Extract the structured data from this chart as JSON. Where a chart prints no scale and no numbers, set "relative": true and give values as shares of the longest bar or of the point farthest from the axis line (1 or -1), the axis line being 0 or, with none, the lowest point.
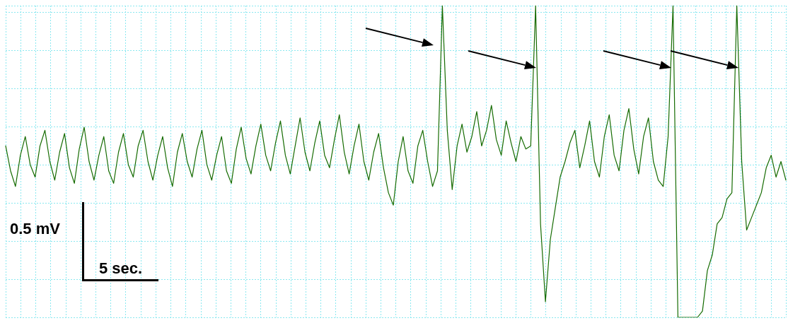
{
  "chart_data": {
    "type": "line",
    "relative": true,
    "grid": true,
    "marker": "none",
    "line_style": "solid",
    "annotations": [
      "0.5 mV",
      "5 sec."
    ],
    "categories": [
      null,
      null,
      null,
      null,
      null,
      null,
      null,
      null,
      null,
      null,
      null,
      null,
      null,
      null,
      null,
      null,
      null,
      null,
      null,
      null,
      null,
      null,
      null,
      null,
      null,
      null,
      null,
      null,
      null,
      null,
      null,
      null,
      null,
      null,
      null,
      null,
      null,
      null,
      null,
      null,
      null,
      null,
      null,
      null,
      null,
      null,
      null,
      null,
      null,
      null,
      null,
      null,
      null,
      null,
      null,
      null,
      null,
      null,
      null,
      null,
      null,
      null,
      null,
      null,
      null,
      null,
      null,
      null,
      null,
      null,
      null,
      null,
      null,
      null,
      null,
      null,
      null,
      null,
      null,
      null,
      null,
      null,
      null,
      null,
      null,
      null,
      null,
      null,
      null,
      null,
      null,
      null,
      null,
      null,
      null,
      null,
      null,
      null,
      null,
      null,
      null,
      null,
      null,
      null,
      null,
      null,
      null,
      null,
      null,
      null,
      null,
      null,
      null,
      null,
      null,
      null,
      null,
      null,
      null,
      null,
      null,
      null,
      null,
      null,
      null,
      null,
      null,
      null,
      null,
      null,
      null,
      null,
      null,
      null,
      null,
      null,
      null,
      null,
      null,
      null,
      null,
      null,
      null,
      null,
      null,
      null,
      null,
      null,
      null,
      null,
      null,
      null,
      null,
      null,
      null,
      null,
      null,
      null,
      null,
      null
    ],
    "series": [
      {
        "color": "#156b00",
        "values": [
          0.55,
          0.47,
          0.42,
          0.52,
          0.58,
          0.49,
          0.45,
          0.55,
          0.6,
          0.5,
          0.44,
          0.53,
          0.59,
          0.48,
          0.43,
          0.54,
          0.61,
          0.5,
          0.44,
          0.52,
          0.58,
          0.47,
          0.43,
          0.53,
          0.59,
          0.49,
          0.45,
          0.55,
          0.6,
          0.5,
          0.44,
          0.52,
          0.58,
          0.48,
          0.42,
          0.53,
          0.59,
          0.5,
          0.45,
          0.54,
          0.6,
          0.49,
          0.44,
          0.52,
          0.58,
          0.47,
          0.43,
          0.54,
          0.61,
          0.51,
          0.46,
          0.55,
          0.62,
          0.52,
          0.47,
          0.56,
          0.63,
          0.52,
          0.46,
          0.55,
          0.64,
          0.53,
          0.47,
          0.56,
          0.63,
          0.52,
          0.48,
          0.57,
          0.65,
          0.53,
          0.46,
          0.55,
          0.62,
          0.5,
          0.44,
          0.53,
          0.59,
          0.48,
          0.4,
          0.36,
          0.5,
          0.58,
          0.47,
          0.43,
          0.55,
          0.6,
          0.5,
          0.42,
          0.47,
          1.0,
          0.6,
          0.41,
          0.55,
          0.62,
          0.53,
          0.58,
          0.66,
          0.55,
          0.6,
          0.68,
          0.57,
          0.52,
          0.63,
          0.56,
          0.5,
          0.58,
          0.54,
          0.55,
          1.0,
          0.3,
          0.05,
          0.25,
          0.35,
          0.45,
          0.5,
          0.56,
          0.6,
          0.48,
          0.55,
          0.63,
          0.5,
          0.45,
          0.58,
          0.65,
          0.52,
          0.47,
          0.6,
          0.67,
          0.54,
          0.46,
          0.58,
          0.64,
          0.5,
          0.44,
          0.42,
          0.58,
          1.0,
          0.0,
          0.0,
          0.0,
          0.0,
          0.0,
          0.02,
          0.15,
          0.2,
          0.3,
          0.32,
          0.38,
          0.4,
          1.0,
          0.5,
          0.28,
          0.32,
          0.36,
          0.4,
          0.48,
          0.52,
          0.45,
          0.5,
          0.44
        ]
      }
    ]
  }
}
